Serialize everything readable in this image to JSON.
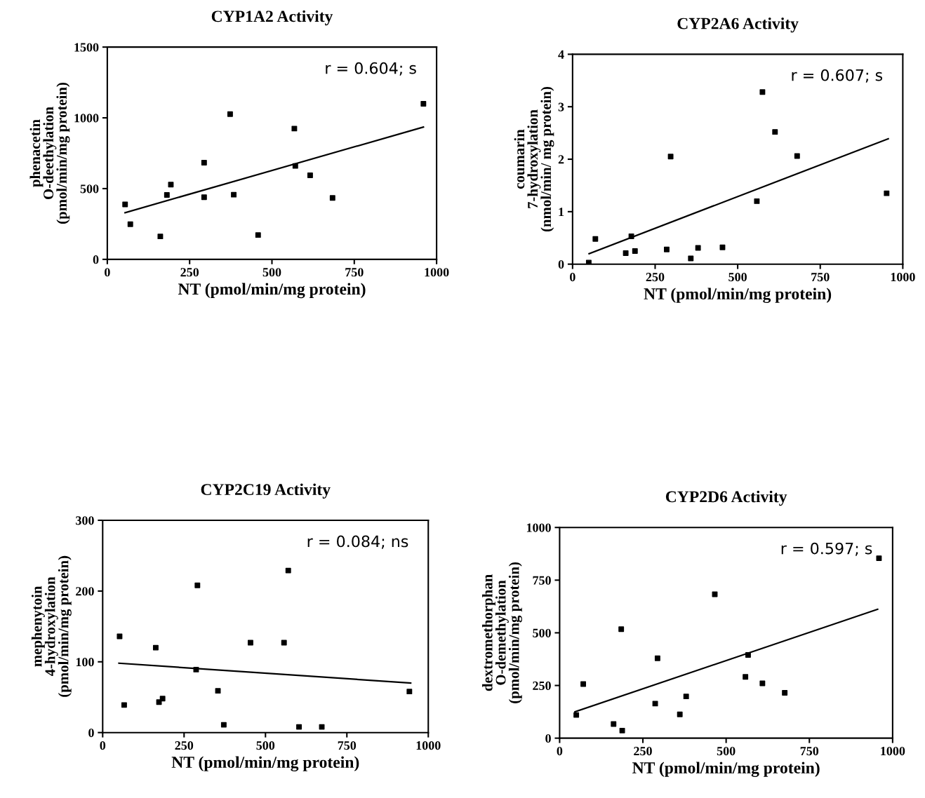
{
  "chart_data": [
    {
      "type": "scatter",
      "title": "CYP1A2 Activity",
      "xlabel": "NT (pmol/min/mg protein)",
      "ylabel": "phenacetin\nO-deethylation\n(pmol/min/mg protein)",
      "annotations": [
        "r = 0.604; s"
      ],
      "xlim": [
        0,
        1000
      ],
      "xticks": [
        0,
        250,
        500,
        750,
        1000
      ],
      "ylim": [
        0,
        1500
      ],
      "yticks": [
        0,
        500,
        1000,
        1500
      ],
      "grid": false,
      "legend": false,
      "series": [
        {
          "marker": "square",
          "color": "#000000",
          "x": [
            54,
            70,
            161,
            181,
            193,
            294,
            294,
            373,
            384,
            458,
            568,
            571,
            616,
            684,
            960
          ],
          "values": [
            388,
            248,
            162,
            455,
            528,
            683,
            439,
            1026,
            457,
            172,
            924,
            660,
            594,
            434,
            1099
          ]
        },
        {
          "type": "line",
          "color": "#000000",
          "x": [
            54,
            960
          ],
          "values": [
            330,
            935
          ]
        }
      ]
    },
    {
      "type": "scatter",
      "title": "CYP2A6 Activity",
      "xlabel": "NT (pmol/min/mg protein)",
      "ylabel": "coumarin\n7-hydroxylation\n(nmol/min/ mg protein)",
      "annotations": [
        "r = 0.607; s"
      ],
      "xlim": [
        0,
        1000
      ],
      "xticks": [
        0,
        250,
        500,
        750,
        1000
      ],
      "ylim": [
        0,
        4
      ],
      "yticks": [
        0,
        1,
        2,
        3,
        4
      ],
      "grid": false,
      "legend": false,
      "series": [
        {
          "marker": "square",
          "color": "#000000",
          "x": [
            49,
            69,
            178,
            161,
            189,
            285,
            297,
            358,
            380,
            454,
            558,
            575,
            613,
            680,
            951
          ],
          "values": [
            0.03,
            0.48,
            0.53,
            0.21,
            0.25,
            0.28,
            2.05,
            0.11,
            0.31,
            0.32,
            1.2,
            3.28,
            2.52,
            2.06,
            1.35
          ]
        },
        {
          "type": "line",
          "color": "#000000",
          "x": [
            50,
            956
          ],
          "values": [
            0.2,
            2.39
          ]
        }
      ]
    },
    {
      "type": "scatter",
      "title": "CYP2C19 Activity",
      "xlabel": "NT (pmol/min/mg protein)",
      "ylabel": "mephenytoin\n4-hydroxylation\n(pmol/min/mg protein)",
      "annotations": [
        "r = 0.084; ns"
      ],
      "xlim": [
        0,
        1000
      ],
      "xticks": [
        0,
        250,
        500,
        750,
        1000
      ],
      "ylim": [
        0,
        300
      ],
      "yticks": [
        0,
        100,
        200,
        300
      ],
      "grid": false,
      "legend": false,
      "series": [
        {
          "marker": "square",
          "color": "#000000",
          "x": [
            52,
            66,
            163,
            173,
            184,
            287,
            291,
            354,
            372,
            454,
            557,
            570,
            603,
            673,
            942
          ],
          "values": [
            136,
            39,
            120,
            43,
            48,
            89,
            208,
            59,
            11,
            127,
            127,
            229,
            8,
            8,
            58
          ]
        },
        {
          "type": "line",
          "color": "#000000",
          "x": [
            50,
            946
          ],
          "values": [
            98,
            70
          ]
        }
      ]
    },
    {
      "type": "scatter",
      "title": "CYP2D6 Activity",
      "xlabel": "NT (pmol/min/mg protein)",
      "ylabel": "dextromethorphan\nO-demethylation\n(pmol/min/mg protein)",
      "annotations": [
        "r = 0.597; s"
      ],
      "xlim": [
        0,
        1000
      ],
      "xticks": [
        0,
        250,
        500,
        750,
        1000
      ],
      "ylim": [
        0,
        1000
      ],
      "yticks": [
        0,
        250,
        500,
        750,
        1000
      ],
      "grid": false,
      "legend": false,
      "series": [
        {
          "marker": "square",
          "color": "#000000",
          "x": [
            50,
            71,
            162,
            188,
            185,
            287,
            294,
            361,
            380,
            466,
            558,
            566,
            609,
            676,
            959
          ],
          "values": [
            110,
            257,
            67,
            36,
            517,
            164,
            379,
            113,
            198,
            683,
            291,
            395,
            260,
            215,
            854
          ]
        },
        {
          "type": "line",
          "color": "#000000",
          "x": [
            46,
            955
          ],
          "values": [
            125,
            612
          ]
        }
      ]
    }
  ]
}
